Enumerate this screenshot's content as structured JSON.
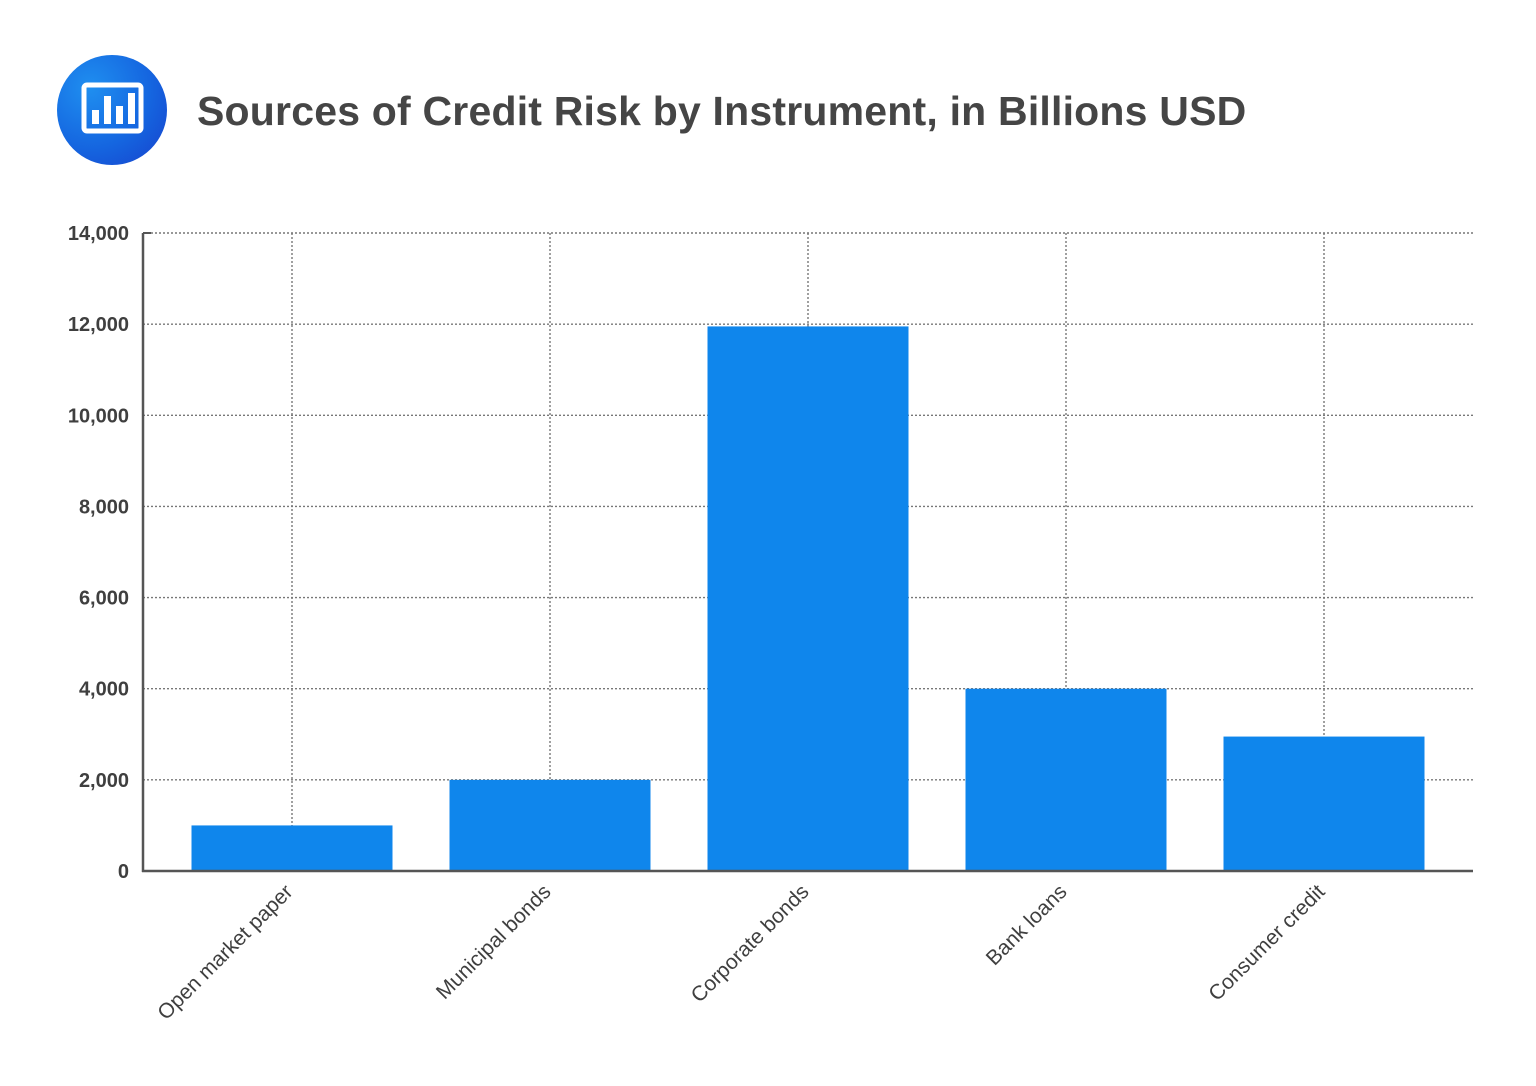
{
  "header": {
    "icon": "bar-chart-icon",
    "title": "Sources of Credit Risk by Instrument, in Billions USD"
  },
  "colors": {
    "bar": "#0f86ec",
    "axis": "#555555",
    "grid": "#777777",
    "title": "#454545",
    "logo_bg": "#1566e0"
  },
  "chart_data": {
    "type": "bar",
    "title": "Sources of Credit Risk by Instrument, in Billions USD",
    "xlabel": "",
    "ylabel": "",
    "categories": [
      "Open market paper",
      "Municipal bonds",
      "Corporate bonds",
      "Bank loans",
      "Consumer credit"
    ],
    "values": [
      1000,
      2000,
      11950,
      4000,
      2950
    ],
    "ylim": [
      0,
      14000
    ],
    "yticks": [
      0,
      2000,
      4000,
      6000,
      8000,
      10000,
      12000,
      14000
    ],
    "ytick_labels": [
      "0",
      "2,000",
      "4,000",
      "6,000",
      "8,000",
      "10,000",
      "12,000",
      "14,000"
    ],
    "grid": true,
    "grid_style": "dotted",
    "legend": null,
    "xtick_rotation": -45
  }
}
